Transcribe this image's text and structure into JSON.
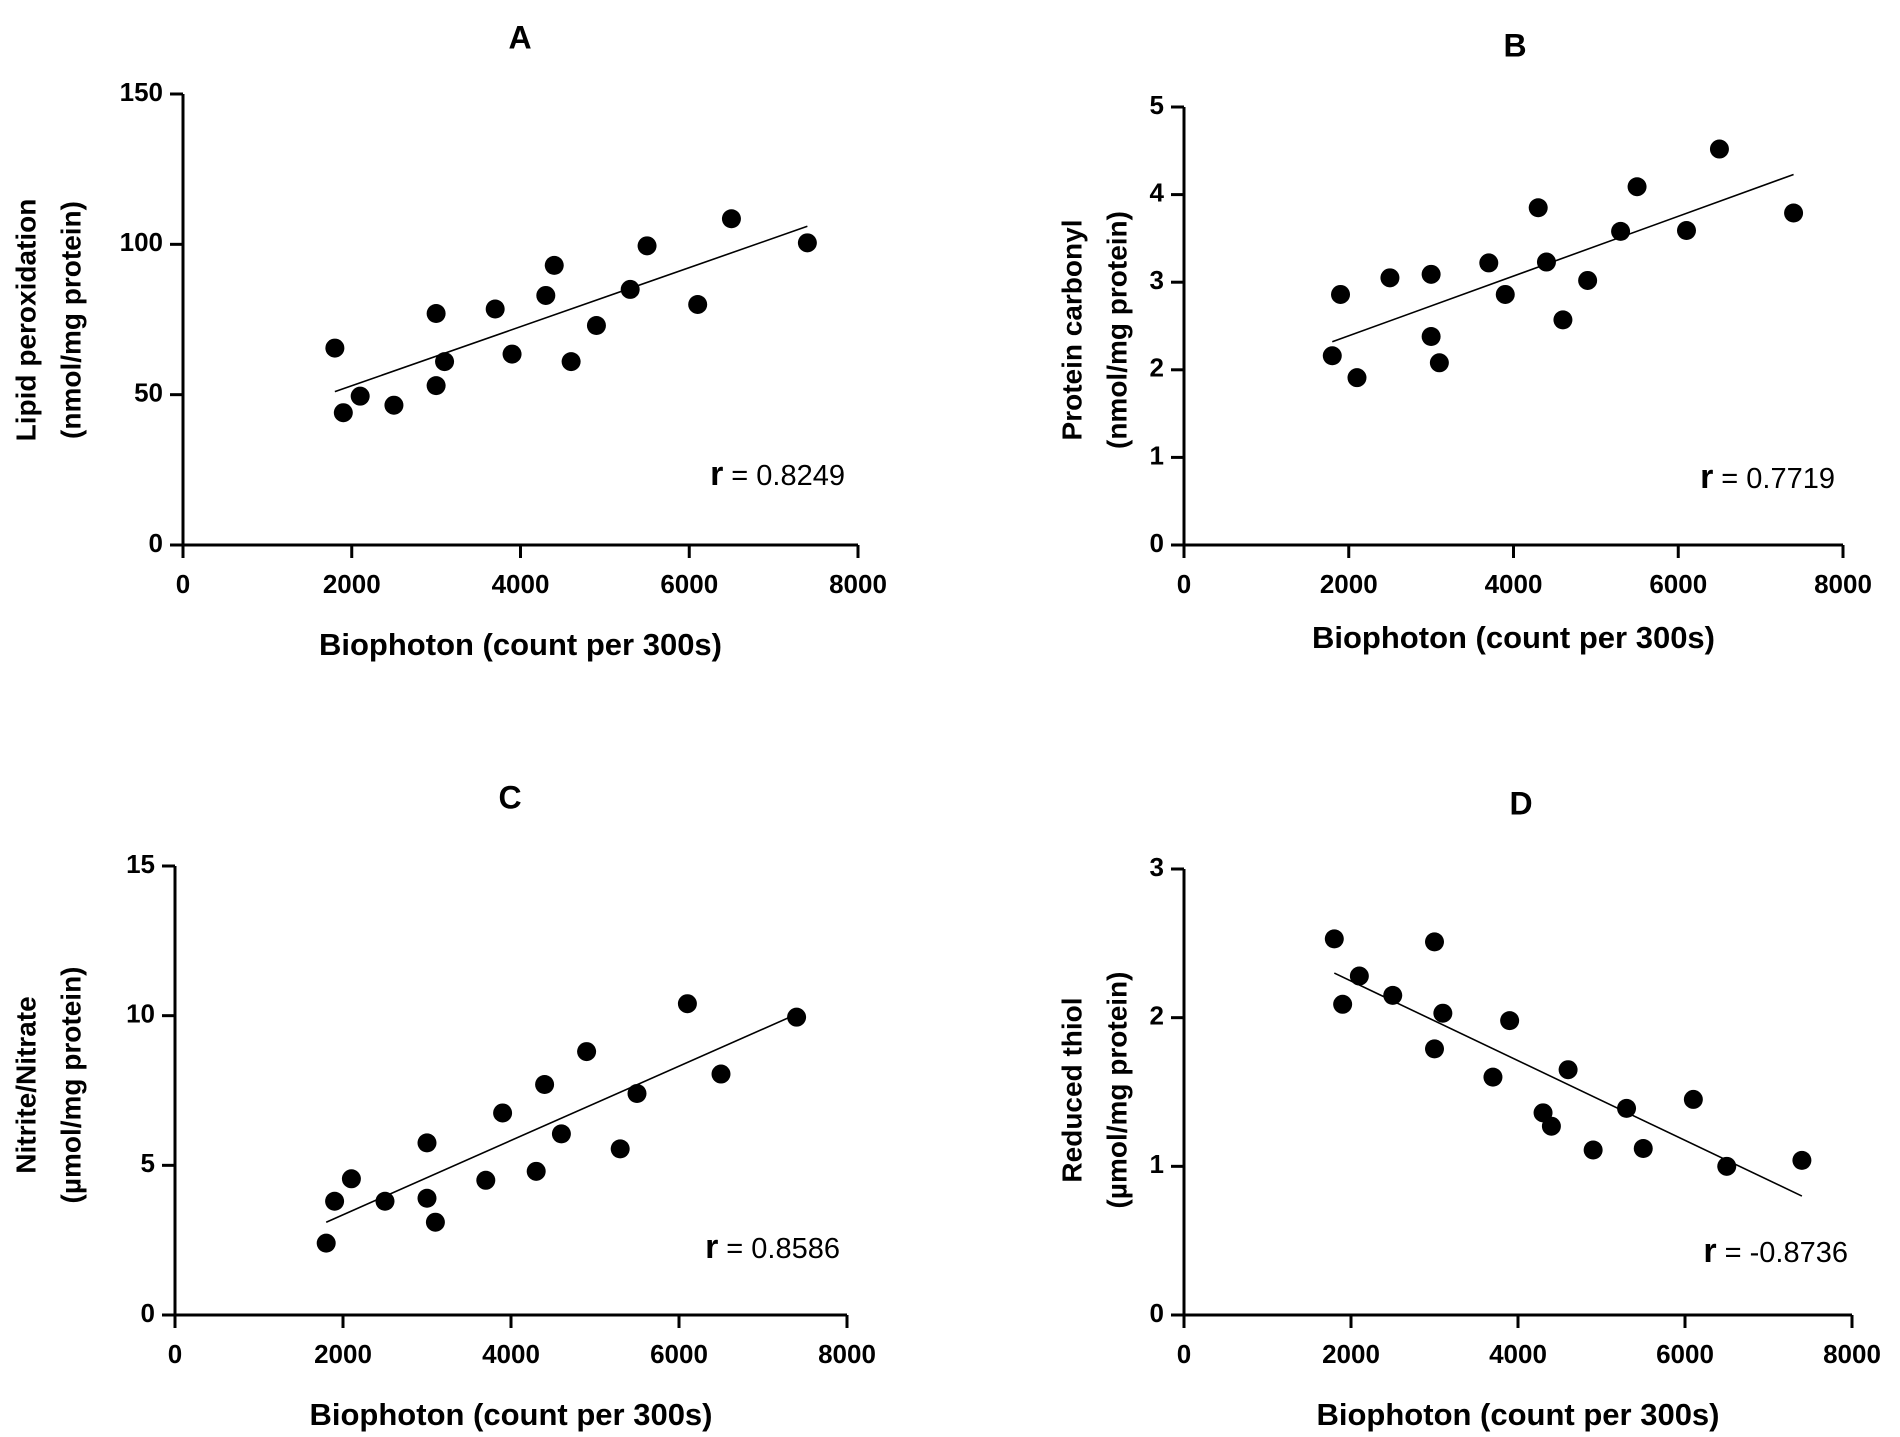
{
  "chart_data": [
    {
      "panel": "A",
      "type": "scatter",
      "title": "A",
      "ylabel_line1": "Lipid peroxidation",
      "ylabel_line2": "(nmol/mg protein)",
      "xlabel": "Biophoton (count per 300s)",
      "xlim": [
        0,
        8000
      ],
      "ylim": [
        0,
        150
      ],
      "xticks": [
        0,
        2000,
        4000,
        6000,
        8000
      ],
      "yticks": [
        0,
        50,
        100,
        150
      ],
      "points": [
        {
          "x": 1800,
          "y": 65.5
        },
        {
          "x": 1900,
          "y": 44
        },
        {
          "x": 2100,
          "y": 49.5
        },
        {
          "x": 2500,
          "y": 46.5
        },
        {
          "x": 3000,
          "y": 77
        },
        {
          "x": 3000,
          "y": 53
        },
        {
          "x": 3100,
          "y": 61
        },
        {
          "x": 3700,
          "y": 78.5
        },
        {
          "x": 3900,
          "y": 63.5
        },
        {
          "x": 4300,
          "y": 83
        },
        {
          "x": 4400,
          "y": 93
        },
        {
          "x": 4600,
          "y": 61
        },
        {
          "x": 4900,
          "y": 73
        },
        {
          "x": 5300,
          "y": 85
        },
        {
          "x": 5500,
          "y": 99.5
        },
        {
          "x": 6100,
          "y": 80
        },
        {
          "x": 6500,
          "y": 108.5
        },
        {
          "x": 7400,
          "y": 100.5
        }
      ],
      "fit_line": {
        "x": [
          1800,
          7400
        ],
        "y": [
          51,
          106
        ]
      },
      "r_label": "r",
      "r_value": "= 0.8249"
    },
    {
      "panel": "B",
      "type": "scatter",
      "title": "B",
      "ylabel_line1": "Protein carbonyl",
      "ylabel_line2": "(nmol/mg protein)",
      "xlabel": "Biophoton (count per 300s)",
      "xlim": [
        0,
        8000
      ],
      "ylim": [
        0,
        5
      ],
      "xticks": [
        0,
        2000,
        4000,
        6000,
        8000
      ],
      "yticks": [
        0,
        1,
        2,
        3,
        4,
        5
      ],
      "points": [
        {
          "x": 1800,
          "y": 2.16
        },
        {
          "x": 1900,
          "y": 2.86
        },
        {
          "x": 2100,
          "y": 1.91
        },
        {
          "x": 2500,
          "y": 3.05
        },
        {
          "x": 3000,
          "y": 3.09
        },
        {
          "x": 3000,
          "y": 2.38
        },
        {
          "x": 3100,
          "y": 2.08
        },
        {
          "x": 3700,
          "y": 3.22
        },
        {
          "x": 3900,
          "y": 2.86
        },
        {
          "x": 4300,
          "y": 3.85
        },
        {
          "x": 4400,
          "y": 3.23
        },
        {
          "x": 4600,
          "y": 2.57
        },
        {
          "x": 4900,
          "y": 3.02
        },
        {
          "x": 5300,
          "y": 3.58
        },
        {
          "x": 5500,
          "y": 4.09
        },
        {
          "x": 6100,
          "y": 3.59
        },
        {
          "x": 6500,
          "y": 4.52
        },
        {
          "x": 7400,
          "y": 3.79
        }
      ],
      "fit_line": {
        "x": [
          1800,
          7400
        ],
        "y": [
          2.32,
          4.23
        ]
      },
      "r_label": "r",
      "r_value": "= 0.7719"
    },
    {
      "panel": "C",
      "type": "scatter",
      "title": "C",
      "ylabel_line1": "Nitrite/Nitrate",
      "ylabel_line2": "(µmol/mg protein)",
      "xlabel": "Biophoton (count per 300s)",
      "xlim": [
        0,
        8000
      ],
      "ylim": [
        0,
        15
      ],
      "xticks": [
        0,
        2000,
        4000,
        6000,
        8000
      ],
      "yticks": [
        0,
        5,
        10,
        15
      ],
      "points": [
        {
          "x": 1800,
          "y": 2.4
        },
        {
          "x": 1900,
          "y": 3.8
        },
        {
          "x": 2100,
          "y": 4.55
        },
        {
          "x": 2500,
          "y": 3.8
        },
        {
          "x": 3000,
          "y": 5.75
        },
        {
          "x": 3000,
          "y": 3.9
        },
        {
          "x": 3100,
          "y": 3.1
        },
        {
          "x": 3700,
          "y": 4.5
        },
        {
          "x": 3900,
          "y": 6.75
        },
        {
          "x": 4300,
          "y": 4.8
        },
        {
          "x": 4400,
          "y": 7.7
        },
        {
          "x": 4600,
          "y": 6.05
        },
        {
          "x": 4900,
          "y": 8.8
        },
        {
          "x": 5300,
          "y": 5.55
        },
        {
          "x": 5500,
          "y": 7.4
        },
        {
          "x": 6100,
          "y": 10.4
        },
        {
          "x": 6500,
          "y": 8.05
        },
        {
          "x": 7400,
          "y": 9.95
        }
      ],
      "fit_line": {
        "x": [
          1800,
          7400
        ],
        "y": [
          3.1,
          10.05
        ]
      },
      "r_label": "r",
      "r_value": "= 0.8586"
    },
    {
      "panel": "D",
      "type": "scatter",
      "title": "D",
      "ylabel_line1": "Reduced thiol",
      "ylabel_line2": "(µmol/mg protein)",
      "xlabel": "Biophoton (count per 300s)",
      "xlim": [
        0,
        8000
      ],
      "ylim": [
        0,
        3
      ],
      "xticks": [
        0,
        2000,
        4000,
        6000,
        8000
      ],
      "yticks": [
        0,
        1,
        2,
        3
      ],
      "points": [
        {
          "x": 1800,
          "y": 2.53
        },
        {
          "x": 1900,
          "y": 2.09
        },
        {
          "x": 2100,
          "y": 2.28
        },
        {
          "x": 2500,
          "y": 2.15
        },
        {
          "x": 3000,
          "y": 2.51
        },
        {
          "x": 3000,
          "y": 1.79
        },
        {
          "x": 3100,
          "y": 2.03
        },
        {
          "x": 3700,
          "y": 1.6
        },
        {
          "x": 3900,
          "y": 1.98
        },
        {
          "x": 4300,
          "y": 1.36
        },
        {
          "x": 4400,
          "y": 1.27
        },
        {
          "x": 4600,
          "y": 1.65
        },
        {
          "x": 4900,
          "y": 1.11
        },
        {
          "x": 5300,
          "y": 1.39
        },
        {
          "x": 5500,
          "y": 1.12
        },
        {
          "x": 6100,
          "y": 1.45
        },
        {
          "x": 6500,
          "y": 1.0
        },
        {
          "x": 7400,
          "y": 1.04
        }
      ],
      "fit_line": {
        "x": [
          1800,
          7400
        ],
        "y": [
          2.3,
          0.8
        ]
      },
      "r_label": "r",
      "r_value": "= -0.8736"
    }
  ]
}
